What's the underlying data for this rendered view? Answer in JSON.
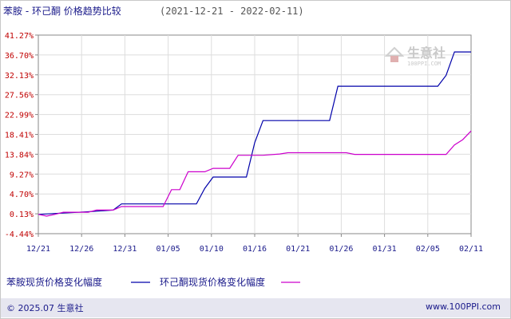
{
  "title": {
    "main": "苯胺 - 环己酮 价格趋势比较",
    "range": "(2021-12-21 - 2022-02-11)"
  },
  "watermark": {
    "brand": "生意社",
    "url": "100PPI.COM"
  },
  "footer": {
    "copyright": "© 2025.07 生意社",
    "site": "www.100PPI.com"
  },
  "chart_data": {
    "type": "line",
    "title": "苯胺 - 环己酮 价格趋势比较",
    "x_tick_labels": [
      "12/21",
      "12/26",
      "12/31",
      "01/05",
      "01/10",
      "01/16",
      "01/21",
      "01/26",
      "01/31",
      "02/05",
      "02/11"
    ],
    "y_tick_labels": [
      "-4.44%",
      "0.13%",
      "4.70%",
      "9.27%",
      "13.84%",
      "18.41%",
      "22.99%",
      "27.56%",
      "32.13%",
      "36.70%",
      "41.27%"
    ],
    "ylim": [
      -4.44,
      41.27
    ],
    "xlim": [
      "2021-12-21",
      "2022-02-11"
    ],
    "grid": true,
    "legend_position": "bottom",
    "series": [
      {
        "name": "苯胺现货价格变化幅度",
        "color": "#0000aa",
        "points": [
          [
            "2021-12-21",
            0.0
          ],
          [
            "2021-12-23",
            0.2
          ],
          [
            "2021-12-27",
            0.6
          ],
          [
            "2021-12-30",
            1.0
          ],
          [
            "2021-12-31",
            2.4
          ],
          [
            "2022-01-07",
            2.4
          ],
          [
            "2022-01-09",
            2.4
          ],
          [
            "2022-01-10",
            6.0
          ],
          [
            "2022-01-11",
            8.6
          ],
          [
            "2022-01-15",
            8.6
          ],
          [
            "2022-01-16",
            16.5
          ],
          [
            "2022-01-17",
            21.6
          ],
          [
            "2022-01-25",
            21.6
          ],
          [
            "2022-01-26",
            29.5
          ],
          [
            "2022-02-05",
            29.5
          ],
          [
            "2022-02-07",
            29.5
          ],
          [
            "2022-02-08",
            32.0
          ],
          [
            "2022-02-09",
            37.4
          ],
          [
            "2022-02-11",
            37.4
          ]
        ]
      },
      {
        "name": "环己酮现货价格变化幅度",
        "color": "#cc00cc",
        "points": [
          [
            "2021-12-21",
            0.0
          ],
          [
            "2021-12-22",
            -0.4
          ],
          [
            "2021-12-23",
            0.0
          ],
          [
            "2021-12-24",
            0.5
          ],
          [
            "2021-12-27",
            0.5
          ],
          [
            "2021-12-28",
            1.0
          ],
          [
            "2021-12-30",
            1.0
          ],
          [
            "2021-12-31",
            1.8
          ],
          [
            "2022-01-05",
            1.8
          ],
          [
            "2022-01-06",
            5.7
          ],
          [
            "2022-01-07",
            5.7
          ],
          [
            "2022-01-08",
            9.8
          ],
          [
            "2022-01-10",
            9.8
          ],
          [
            "2022-01-11",
            10.6
          ],
          [
            "2022-01-13",
            10.6
          ],
          [
            "2022-01-14",
            13.6
          ],
          [
            "2022-01-17",
            13.6
          ],
          [
            "2022-01-19",
            13.9
          ],
          [
            "2022-01-20",
            14.2
          ],
          [
            "2022-01-27",
            14.2
          ],
          [
            "2022-01-28",
            13.8
          ],
          [
            "2022-02-08",
            13.8
          ],
          [
            "2022-02-09",
            16.0
          ],
          [
            "2022-02-10",
            17.2
          ],
          [
            "2022-02-11",
            19.2
          ]
        ]
      }
    ]
  }
}
